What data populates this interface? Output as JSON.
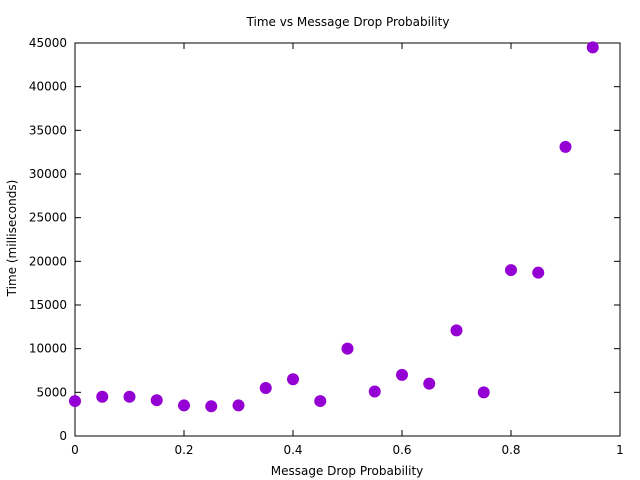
{
  "chart_data": {
    "type": "scatter",
    "title": "Time vs Message Drop Probability",
    "xlabel": "Message Drop Probability",
    "ylabel": "Time (milliseconds)",
    "xlim": [
      0,
      1
    ],
    "ylim": [
      0,
      45000
    ],
    "x_ticks": [
      "0",
      "0.2",
      "0.4",
      "0.6",
      "0.8",
      "1"
    ],
    "y_ticks": [
      "0",
      "5000",
      "10000",
      "15000",
      "20000",
      "25000",
      "30000",
      "35000",
      "40000",
      "45000"
    ],
    "grid": false,
    "point_color": "#9400d3",
    "series": [
      {
        "points": [
          {
            "x": 0.0,
            "y": 4000
          },
          {
            "x": 0.05,
            "y": 4500
          },
          {
            "x": 0.1,
            "y": 4500
          },
          {
            "x": 0.15,
            "y": 4100
          },
          {
            "x": 0.2,
            "y": 3500
          },
          {
            "x": 0.25,
            "y": 3400
          },
          {
            "x": 0.3,
            "y": 3500
          },
          {
            "x": 0.35,
            "y": 5500
          },
          {
            "x": 0.4,
            "y": 6500
          },
          {
            "x": 0.45,
            "y": 4000
          },
          {
            "x": 0.5,
            "y": 10000
          },
          {
            "x": 0.55,
            "y": 5100
          },
          {
            "x": 0.6,
            "y": 7000
          },
          {
            "x": 0.65,
            "y": 6000
          },
          {
            "x": 0.7,
            "y": 12100
          },
          {
            "x": 0.75,
            "y": 5000
          },
          {
            "x": 0.8,
            "y": 19000
          },
          {
            "x": 0.85,
            "y": 18700
          },
          {
            "x": 0.9,
            "y": 33100
          },
          {
            "x": 0.95,
            "y": 44500
          }
        ]
      }
    ]
  }
}
